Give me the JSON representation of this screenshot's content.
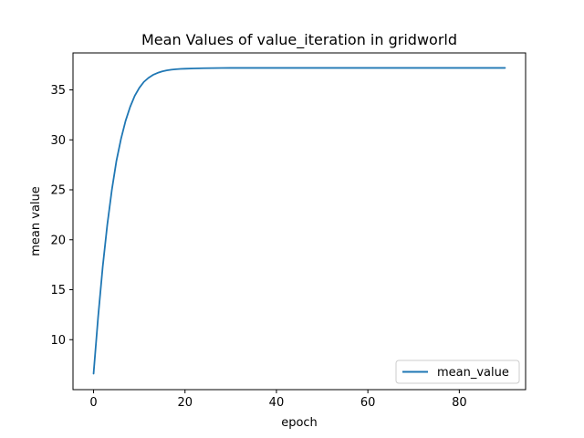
{
  "chart_data": {
    "type": "line",
    "title": "Mean Values of value_iteration in gridworld",
    "xlabel": "epoch",
    "ylabel": "mean value",
    "xlim": [
      -4.5,
      94.5
    ],
    "ylim": [
      5.0,
      38.7
    ],
    "xticks": [
      0,
      20,
      40,
      60,
      80
    ],
    "yticks": [
      10,
      15,
      20,
      25,
      30,
      35
    ],
    "grid": false,
    "legend_position": "lower right",
    "series": [
      {
        "name": "mean_value",
        "color": "#1f77b4",
        "x": [
          0,
          1,
          2,
          3,
          4,
          5,
          6,
          7,
          8,
          9,
          10,
          11,
          12,
          13,
          14,
          15,
          16,
          17,
          18,
          19,
          20,
          22,
          24,
          26,
          28,
          30,
          35,
          40,
          45,
          50,
          55,
          60,
          65,
          70,
          75,
          80,
          85,
          90
        ],
        "y": [
          6.6,
          12.3,
          17.3,
          21.5,
          25.0,
          27.9,
          30.1,
          31.9,
          33.3,
          34.4,
          35.2,
          35.8,
          36.2,
          36.5,
          36.7,
          36.85,
          36.95,
          37.02,
          37.07,
          37.1,
          37.12,
          37.15,
          37.17,
          37.18,
          37.19,
          37.2,
          37.2,
          37.2,
          37.2,
          37.2,
          37.2,
          37.2,
          37.2,
          37.2,
          37.2,
          37.2,
          37.2,
          37.2
        ]
      }
    ]
  }
}
